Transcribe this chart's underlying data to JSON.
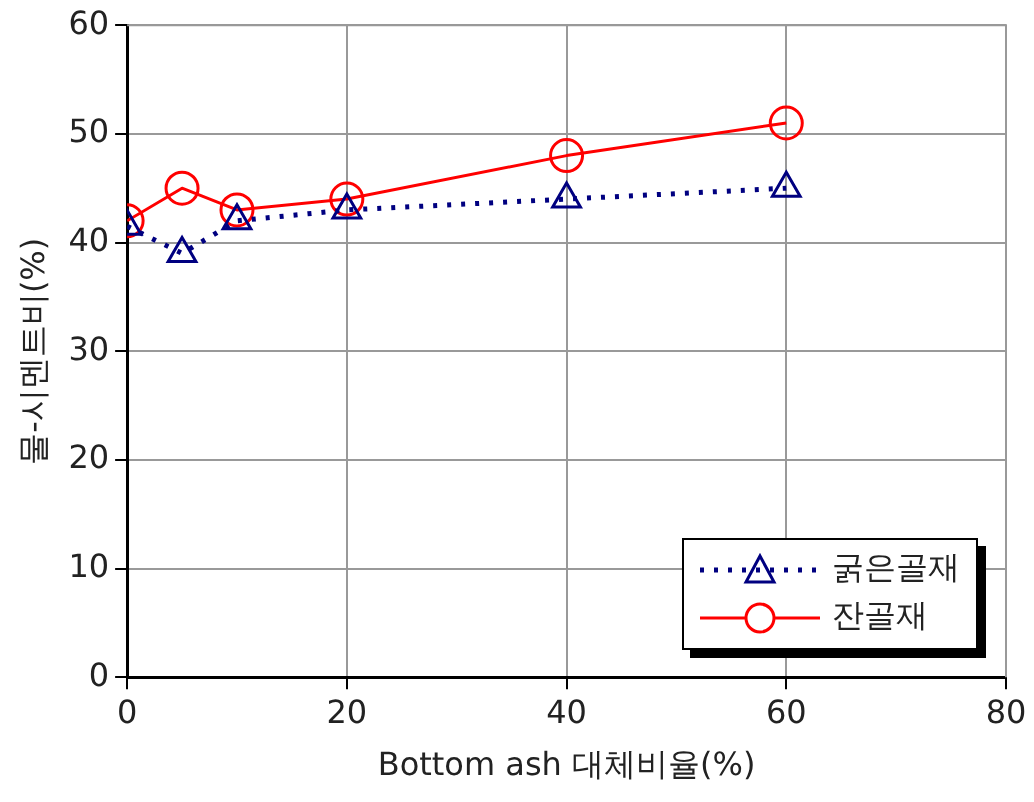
{
  "chart_data": {
    "type": "line",
    "xlabel": "Bottom ash 대체비율(%)",
    "ylabel": "물-시멘트비(%)",
    "x": [
      0,
      5,
      10,
      20,
      40,
      60
    ],
    "series": [
      {
        "name": "굵은골재",
        "color": "#000080",
        "marker": "triangle",
        "line_style": "dotted",
        "values": [
          41.5,
          39,
          42,
          43,
          44,
          45
        ]
      },
      {
        "name": "잔골재",
        "color": "#ff0000",
        "marker": "circle",
        "line_style": "solid",
        "values": [
          42,
          45,
          43,
          44,
          48,
          51
        ]
      }
    ],
    "xlim": [
      0,
      80
    ],
    "xticks": [
      0,
      20,
      40,
      60,
      80
    ],
    "ylim": [
      0,
      60
    ],
    "yticks": [
      0,
      10,
      20,
      30,
      40,
      50,
      60
    ],
    "grid": true,
    "legend": "bottom right"
  }
}
